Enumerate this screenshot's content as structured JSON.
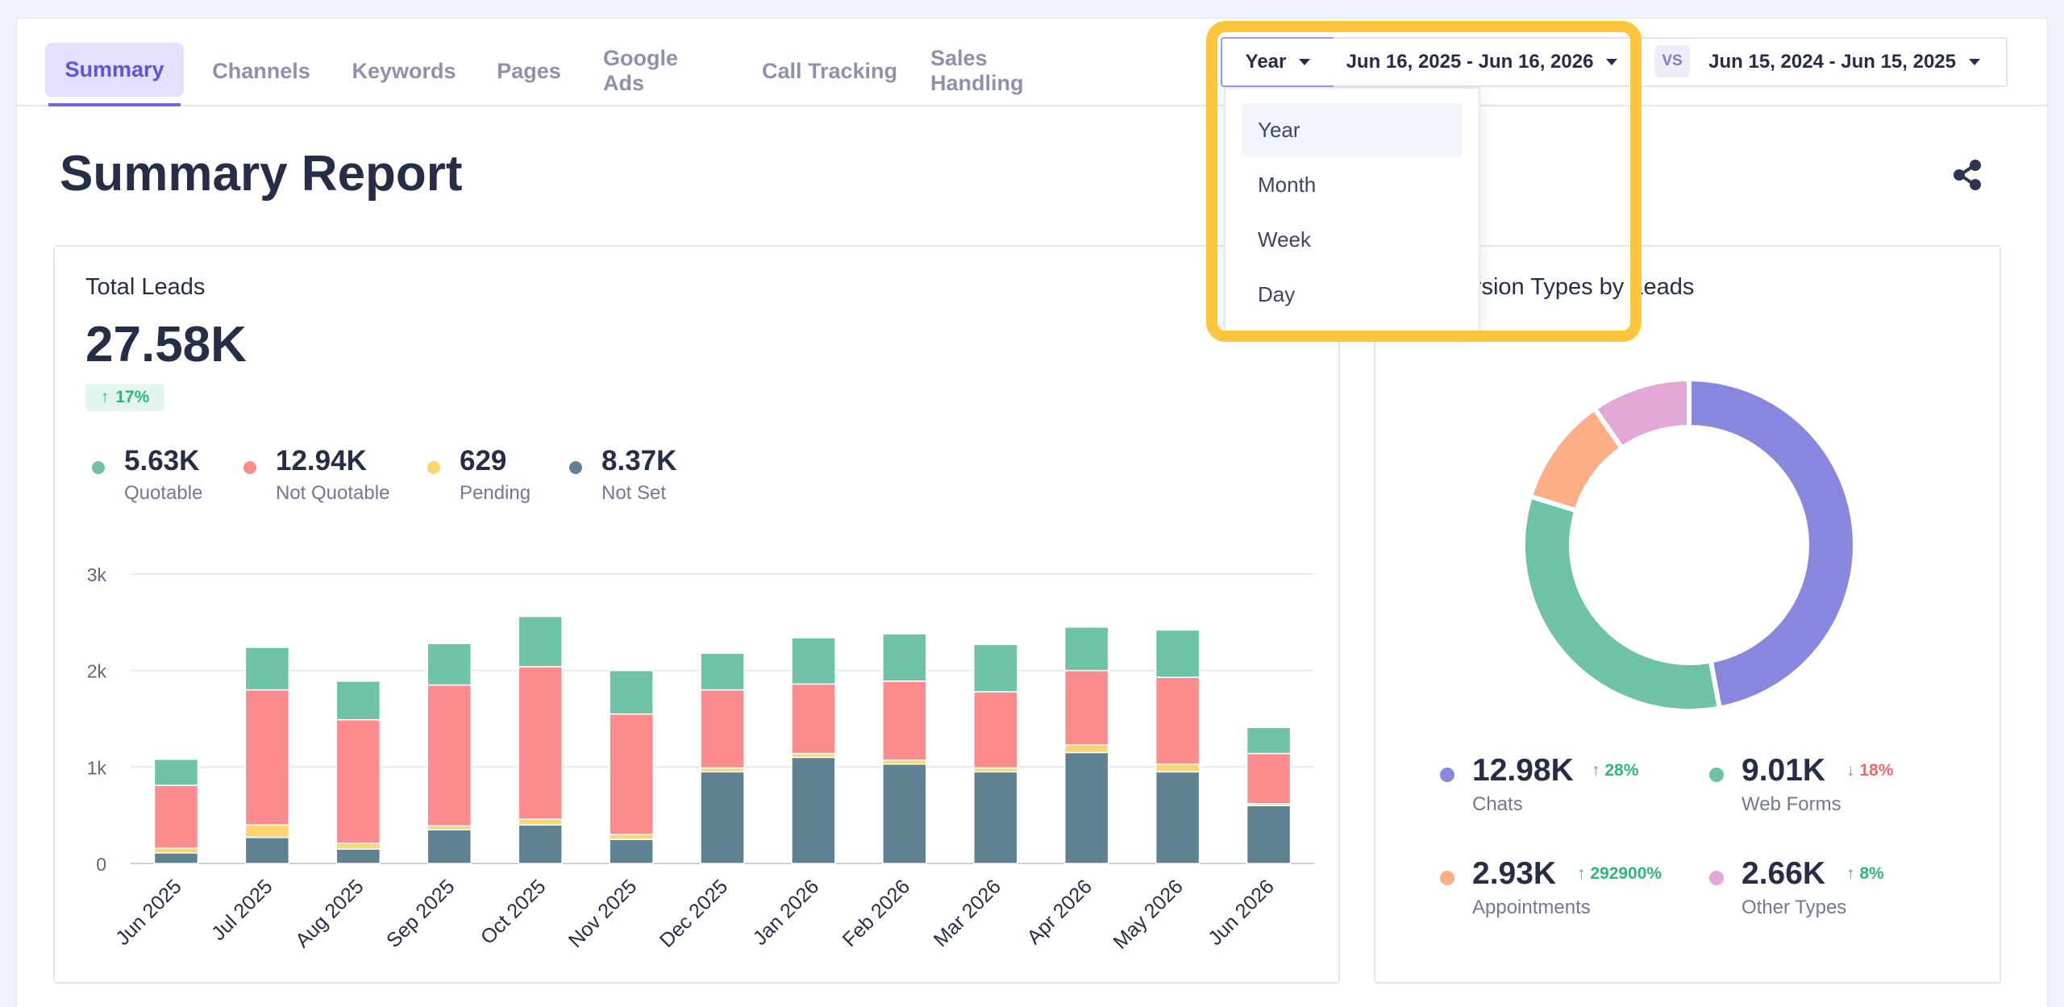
{
  "tabs": [
    "Summary",
    "Channels",
    "Keywords",
    "Pages",
    "Google Ads",
    "Call Tracking",
    "Sales Handling"
  ],
  "active_tab": 0,
  "controls": {
    "period": "Year",
    "range_current": "Jun 16, 2025 - Jun 16, 2026",
    "vs": "VS",
    "range_compare": "Jun 15, 2024 - Jun 15, 2025"
  },
  "period_options": [
    "Year",
    "Month",
    "Week",
    "Day"
  ],
  "selected_period_index": 0,
  "page_title": "Summary Report",
  "leads": {
    "title": "Total Leads",
    "total": "27.58K",
    "change": "17%",
    "stats": [
      {
        "value": "5.63K",
        "label": "Quotable",
        "color": "#6ec2a6"
      },
      {
        "value": "12.94K",
        "label": "Not Quotable",
        "color": "#fc8b8e"
      },
      {
        "value": "629",
        "label": "Pending",
        "color": "#fcd56f"
      },
      {
        "value": "8.37K",
        "label": "Not Set",
        "color": "#5f8293"
      }
    ]
  },
  "conversion": {
    "title": "Conversion Types by Leads",
    "stats": [
      {
        "value": "12.98K",
        "label": "Chats",
        "change": "28%",
        "direction": "up",
        "color": "#8886df"
      },
      {
        "value": "9.01K",
        "label": "Web Forms",
        "change": "18%",
        "direction": "down",
        "color": "#6ec2a6"
      },
      {
        "value": "2.93K",
        "label": "Appointments",
        "change": "292900%",
        "direction": "up",
        "color": "#fdae87"
      },
      {
        "value": "2.66K",
        "label": "Other Types",
        "change": "8%",
        "direction": "up",
        "color": "#e2a7d4"
      }
    ]
  },
  "chart_data": [
    {
      "type": "bar",
      "stacked": true,
      "categories": [
        "Jun 2025",
        "Jul 2025",
        "Aug 2025",
        "Sep 2025",
        "Oct 2025",
        "Nov 2025",
        "Dec 2025",
        "Jan 2026",
        "Feb 2026",
        "Mar 2026",
        "Apr 2026",
        "May 2026",
        "Jun 2026"
      ],
      "yticks": [
        "0",
        "1k",
        "2k",
        "3k"
      ],
      "ylim": [
        0,
        3000
      ],
      "series": [
        {
          "name": "Not Set",
          "color": "#5f8293",
          "values": [
            110,
            270,
            150,
            350,
            400,
            250,
            950,
            1100,
            1030,
            950,
            1150,
            950,
            600
          ]
        },
        {
          "name": "Pending",
          "color": "#fcd56f",
          "values": [
            50,
            130,
            60,
            40,
            60,
            50,
            40,
            40,
            40,
            40,
            80,
            80,
            20
          ]
        },
        {
          "name": "Not Quotable",
          "color": "#fc8b8e",
          "values": [
            650,
            1400,
            1280,
            1460,
            1580,
            1250,
            810,
            720,
            820,
            790,
            770,
            900,
            520
          ]
        },
        {
          "name": "Quotable",
          "color": "#6ec2a6",
          "values": [
            270,
            440,
            400,
            430,
            520,
            450,
            380,
            480,
            490,
            490,
            450,
            490,
            270
          ]
        }
      ],
      "grid": true
    },
    {
      "type": "pie",
      "donut": true,
      "labels": [
        "Chats",
        "Web Forms",
        "Appointments",
        "Other Types"
      ],
      "values": [
        12980,
        9010,
        2930,
        2660
      ],
      "colors": [
        "#8886df",
        "#6ec2a6",
        "#fdae87",
        "#e2a7d4"
      ]
    }
  ]
}
